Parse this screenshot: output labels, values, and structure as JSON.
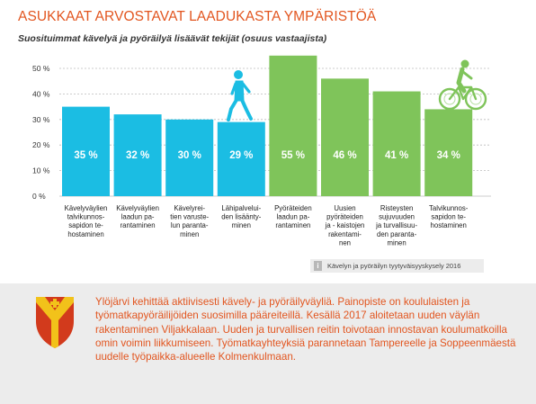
{
  "title": "ASUKKAAT ARVOSTAVAT LAADUKASTA YMPÄRISTÖÄ",
  "subtitle": "Suosituimmat kävelyä ja pyöräilyä lisäävät tekijät (osuus vastaajista)",
  "source": "Kävelyn ja pyöräilyn tyytyväisyyskysely 2016",
  "body_text": "Ylöjärvi kehittää aktiivisesti kävely- ja pyöräilyväyliä. Painopiste on koululaisten ja työmatkapyöräilijöiden suosimilla pääreiteillä. Kesällä 2017 aloitetaan uuden väylän rakentaminen Viljakkalaan. Uuden ja turvallisen reitin toivotaan innostavan koulumatkoilla omin voimin liikkumiseen. Työmatkayhteyksiä parannetaan Tampereelle ja Soppeenmäestä uudelle työpaikka-alueelle Kolmenkulmaan.",
  "colors": {
    "title": "#e2551f",
    "walking": "#1bbde3",
    "cycling": "#7fc45a",
    "panel": "#ececec"
  },
  "chart_data": {
    "type": "bar",
    "ylim": [
      0,
      50
    ],
    "yticks": [
      "0 %",
      "10 %",
      "20 %",
      "30 %",
      "40 %",
      "50 %"
    ],
    "grid": true,
    "categories": [
      [
        "Kävelyväylien",
        "talvikunnos-",
        "sapidon te-",
        "hostaminen"
      ],
      [
        "Kävelyväylien",
        "laadun pa-",
        "rantaminen"
      ],
      [
        "Kävelyrei-",
        "tien varuste-",
        "lun paranta-",
        "minen"
      ],
      [
        "Lähipalvelui-",
        "den lisäänty-",
        "minen"
      ],
      [
        "Pyöräteiden",
        "laadun pa-",
        "rantaminen"
      ],
      [
        "Uusien",
        "pyöräteiden",
        "ja - kaistojen",
        "rakentami-",
        "nen"
      ],
      [
        "Risteysten",
        "sujuvuuden",
        "ja turvallisuu-",
        "den paranta-",
        "minen"
      ],
      [
        "Talvikunnos-",
        "sapidon te-",
        "hostaminen"
      ]
    ],
    "values": [
      35,
      32,
      30,
      29,
      55,
      46,
      41,
      34
    ],
    "value_labels": [
      "35 %",
      "32 %",
      "30 %",
      "29 %",
      "55 %",
      "46 %",
      "41 %",
      "34 %"
    ],
    "groups": [
      "walking",
      "walking",
      "walking",
      "walking",
      "cycling",
      "cycling",
      "cycling",
      "cycling"
    ],
    "icons": [
      "walker-icon",
      "cyclist-icon"
    ]
  }
}
